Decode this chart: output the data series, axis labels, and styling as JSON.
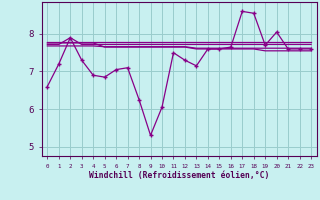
{
  "xlabel": "Windchill (Refroidissement éolien,°C)",
  "bg_color": "#c8f0f0",
  "line_color": "#880088",
  "grid_color": "#99cccc",
  "hours": [
    0,
    1,
    2,
    3,
    4,
    5,
    6,
    7,
    8,
    9,
    10,
    11,
    12,
    13,
    14,
    15,
    16,
    17,
    18,
    19,
    20,
    21,
    22,
    23
  ],
  "flat1": [
    7.78,
    7.78,
    7.78,
    7.78,
    7.78,
    7.78,
    7.78,
    7.78,
    7.78,
    7.78,
    7.78,
    7.78,
    7.78,
    7.78,
    7.78,
    7.78,
    7.78,
    7.78,
    7.78,
    7.78,
    7.78,
    7.78,
    7.78,
    7.78
  ],
  "flat2": [
    7.72,
    7.72,
    7.9,
    7.72,
    7.72,
    7.72,
    7.72,
    7.72,
    7.72,
    7.72,
    7.72,
    7.72,
    7.72,
    7.72,
    7.72,
    7.72,
    7.72,
    7.72,
    7.72,
    7.72,
    7.72,
    7.72,
    7.72,
    7.72
  ],
  "flat3": [
    7.68,
    7.68,
    7.68,
    7.68,
    7.68,
    7.66,
    7.66,
    7.66,
    7.66,
    7.66,
    7.66,
    7.66,
    7.66,
    7.62,
    7.62,
    7.62,
    7.62,
    7.62,
    7.62,
    7.62,
    7.62,
    7.62,
    7.62,
    7.62
  ],
  "flat4": [
    7.76,
    7.76,
    7.76,
    7.76,
    7.76,
    7.65,
    7.65,
    7.65,
    7.65,
    7.65,
    7.65,
    7.65,
    7.65,
    7.6,
    7.6,
    7.6,
    7.6,
    7.6,
    7.6,
    7.55,
    7.55,
    7.55,
    7.55,
    7.55
  ],
  "windchill": [
    6.6,
    7.2,
    7.9,
    7.3,
    6.9,
    6.85,
    7.05,
    7.1,
    6.25,
    5.3,
    6.05,
    7.5,
    7.3,
    7.15,
    7.6,
    7.6,
    7.65,
    8.6,
    8.55,
    7.7,
    8.05,
    7.6,
    7.6,
    7.6
  ],
  "ylim": [
    4.75,
    8.85
  ],
  "yticks": [
    5,
    6,
    7,
    8
  ],
  "xlim": [
    -0.5,
    23.5
  ]
}
